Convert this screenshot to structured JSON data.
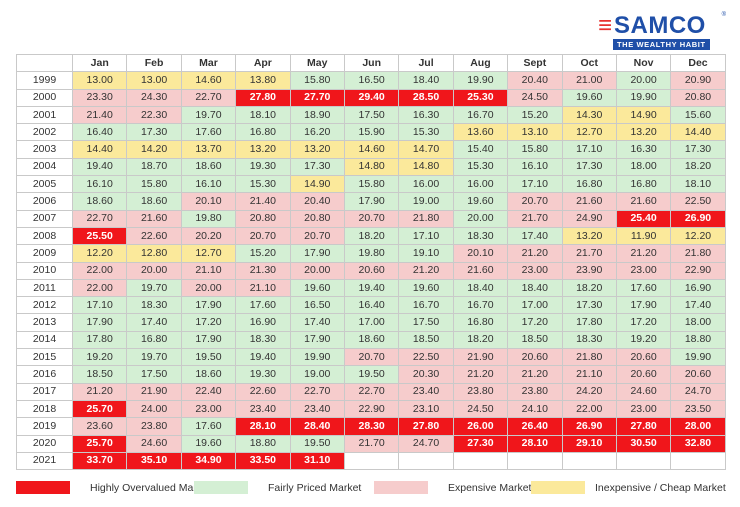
{
  "brand": {
    "name": "SAMCO",
    "tagline": "THE WEALTHY HABIT",
    "registered": "®"
  },
  "table": {
    "corner": "",
    "months": [
      "Jan",
      "Feb",
      "Mar",
      "Apr",
      "May",
      "Jun",
      "Jul",
      "Aug",
      "Sept",
      "Oct",
      "Nov",
      "Dec"
    ],
    "rows": [
      {
        "year": "1999",
        "values": [
          "13.00",
          "13.00",
          "14.60",
          "13.80",
          "15.80",
          "16.50",
          "18.40",
          "19.90",
          "20.40",
          "21.00",
          "20.00",
          "20.90"
        ],
        "classes": [
          "c",
          "c",
          "c",
          "c",
          "f",
          "f",
          "f",
          "f",
          "e",
          "e",
          "f",
          "e"
        ]
      },
      {
        "year": "2000",
        "values": [
          "23.30",
          "24.30",
          "22.70",
          "27.80",
          "27.70",
          "29.40",
          "28.50",
          "25.30",
          "24.50",
          "19.60",
          "19.90",
          "20.80"
        ],
        "classes": [
          "e",
          "e",
          "e",
          "h",
          "h",
          "h",
          "h",
          "h",
          "e",
          "f",
          "f",
          "e"
        ]
      },
      {
        "year": "2001",
        "values": [
          "21.40",
          "22.30",
          "19.70",
          "18.10",
          "18.90",
          "17.50",
          "16.30",
          "16.70",
          "15.20",
          "14.30",
          "14.90",
          "15.60"
        ],
        "classes": [
          "e",
          "e",
          "f",
          "f",
          "f",
          "f",
          "f",
          "f",
          "f",
          "c",
          "c",
          "f"
        ]
      },
      {
        "year": "2002",
        "values": [
          "16.40",
          "17.30",
          "17.60",
          "16.80",
          "16.20",
          "15.90",
          "15.30",
          "13.60",
          "13.10",
          "12.70",
          "13.20",
          "14.40"
        ],
        "classes": [
          "f",
          "f",
          "f",
          "f",
          "f",
          "f",
          "f",
          "c",
          "c",
          "c",
          "c",
          "c"
        ]
      },
      {
        "year": "2003",
        "values": [
          "14.40",
          "14.20",
          "13.70",
          "13.20",
          "13.20",
          "14.60",
          "14.70",
          "15.40",
          "15.80",
          "17.10",
          "16.30",
          "17.30"
        ],
        "classes": [
          "c",
          "c",
          "c",
          "c",
          "c",
          "c",
          "c",
          "f",
          "f",
          "f",
          "f",
          "f"
        ]
      },
      {
        "year": "2004",
        "values": [
          "19.40",
          "18.70",
          "18.60",
          "19.30",
          "17.30",
          "14.80",
          "14.80",
          "15.30",
          "16.10",
          "17.30",
          "18.00",
          "18.20"
        ],
        "classes": [
          "f",
          "f",
          "f",
          "f",
          "f",
          "c",
          "c",
          "f",
          "f",
          "f",
          "f",
          "f"
        ]
      },
      {
        "year": "2005",
        "values": [
          "16.10",
          "15.80",
          "16.10",
          "15.30",
          "14.90",
          "15.80",
          "16.00",
          "16.00",
          "17.10",
          "16.80",
          "16.80",
          "18.10"
        ],
        "classes": [
          "f",
          "f",
          "f",
          "f",
          "c",
          "f",
          "f",
          "f",
          "f",
          "f",
          "f",
          "f"
        ]
      },
      {
        "year": "2006",
        "values": [
          "18.60",
          "18.60",
          "20.10",
          "21.40",
          "20.40",
          "17.90",
          "19.00",
          "19.60",
          "20.70",
          "21.60",
          "21.60",
          "22.50"
        ],
        "classes": [
          "f",
          "f",
          "e",
          "e",
          "e",
          "f",
          "f",
          "f",
          "e",
          "e",
          "e",
          "e"
        ]
      },
      {
        "year": "2007",
        "values": [
          "22.70",
          "21.60",
          "19.80",
          "20.80",
          "20.80",
          "20.70",
          "21.80",
          "20.00",
          "21.70",
          "24.90",
          "25.40",
          "26.90"
        ],
        "classes": [
          "e",
          "e",
          "f",
          "e",
          "e",
          "e",
          "e",
          "f",
          "e",
          "e",
          "h",
          "h"
        ]
      },
      {
        "year": "2008",
        "values": [
          "25.50",
          "22.60",
          "20.20",
          "20.70",
          "20.70",
          "18.20",
          "17.10",
          "18.30",
          "17.40",
          "13.20",
          "11.90",
          "12.20"
        ],
        "classes": [
          "h",
          "e",
          "e",
          "e",
          "e",
          "f",
          "f",
          "f",
          "f",
          "c",
          "c",
          "c"
        ]
      },
      {
        "year": "2009",
        "values": [
          "12.20",
          "12.80",
          "12.70",
          "15.20",
          "17.90",
          "19.80",
          "19.10",
          "20.10",
          "21.20",
          "21.70",
          "21.20",
          "21.80"
        ],
        "classes": [
          "c",
          "c",
          "c",
          "f",
          "f",
          "f",
          "f",
          "e",
          "e",
          "e",
          "e",
          "e"
        ]
      },
      {
        "year": "2010",
        "values": [
          "22.00",
          "20.00",
          "21.10",
          "21.30",
          "20.00",
          "20.60",
          "21.20",
          "21.60",
          "23.00",
          "23.90",
          "23.00",
          "22.90"
        ],
        "classes": [
          "e",
          "e",
          "e",
          "e",
          "e",
          "e",
          "e",
          "e",
          "e",
          "e",
          "e",
          "e"
        ]
      },
      {
        "year": "2011",
        "values": [
          "22.00",
          "19.70",
          "20.00",
          "21.10",
          "19.60",
          "19.40",
          "19.60",
          "18.40",
          "18.40",
          "18.20",
          "17.60",
          "16.90"
        ],
        "classes": [
          "e",
          "f",
          "e",
          "e",
          "f",
          "f",
          "f",
          "f",
          "f",
          "f",
          "f",
          "f"
        ]
      },
      {
        "year": "2012",
        "values": [
          "17.10",
          "18.30",
          "17.90",
          "17.60",
          "16.50",
          "16.40",
          "16.70",
          "16.70",
          "17.00",
          "17.30",
          "17.90",
          "17.40"
        ],
        "classes": [
          "f",
          "f",
          "f",
          "f",
          "f",
          "f",
          "f",
          "f",
          "f",
          "f",
          "f",
          "f"
        ]
      },
      {
        "year": "2013",
        "values": [
          "17.90",
          "17.40",
          "17.20",
          "16.90",
          "17.40",
          "17.00",
          "17.50",
          "16.80",
          "17.20",
          "17.80",
          "17.20",
          "18.00"
        ],
        "classes": [
          "f",
          "f",
          "f",
          "f",
          "f",
          "f",
          "f",
          "f",
          "f",
          "f",
          "f",
          "f"
        ]
      },
      {
        "year": "2014",
        "values": [
          "17.80",
          "16.80",
          "17.90",
          "18.30",
          "17.90",
          "18.60",
          "18.50",
          "18.20",
          "18.50",
          "18.30",
          "19.20",
          "18.80"
        ],
        "classes": [
          "f",
          "f",
          "f",
          "f",
          "f",
          "f",
          "f",
          "f",
          "f",
          "f",
          "f",
          "f"
        ]
      },
      {
        "year": "2015",
        "values": [
          "19.20",
          "19.70",
          "19.50",
          "19.40",
          "19.90",
          "20.70",
          "22.50",
          "21.90",
          "20.60",
          "21.80",
          "20.60",
          "19.90"
        ],
        "classes": [
          "f",
          "f",
          "f",
          "f",
          "f",
          "e",
          "e",
          "e",
          "e",
          "e",
          "e",
          "f"
        ]
      },
      {
        "year": "2016",
        "values": [
          "18.50",
          "17.50",
          "18.60",
          "19.30",
          "19.00",
          "19.50",
          "20.30",
          "21.20",
          "21.20",
          "21.10",
          "20.60",
          "20.60"
        ],
        "classes": [
          "f",
          "f",
          "f",
          "f",
          "f",
          "f",
          "e",
          "e",
          "e",
          "e",
          "e",
          "e"
        ]
      },
      {
        "year": "2017",
        "values": [
          "21.20",
          "21.90",
          "22.40",
          "22.60",
          "22.70",
          "22.70",
          "23.40",
          "23.80",
          "23.80",
          "24.20",
          "24.60",
          "24.70"
        ],
        "classes": [
          "e",
          "e",
          "e",
          "e",
          "e",
          "e",
          "e",
          "e",
          "e",
          "e",
          "e",
          "e"
        ]
      },
      {
        "year": "2018",
        "values": [
          "25.70",
          "24.00",
          "23.00",
          "23.40",
          "23.40",
          "22.90",
          "23.10",
          "24.50",
          "24.10",
          "22.00",
          "23.00",
          "23.50"
        ],
        "classes": [
          "h",
          "e",
          "e",
          "e",
          "e",
          "e",
          "e",
          "e",
          "e",
          "e",
          "e",
          "e"
        ]
      },
      {
        "year": "2019",
        "values": [
          "23.60",
          "23.80",
          "17.60",
          "28.10",
          "28.40",
          "28.30",
          "27.80",
          "26.00",
          "26.40",
          "26.90",
          "27.80",
          "28.00"
        ],
        "classes": [
          "e",
          "e",
          "f",
          "h",
          "h",
          "h",
          "h",
          "h",
          "h",
          "h",
          "h",
          "h"
        ]
      },
      {
        "year": "2020",
        "values": [
          "25.70",
          "24.60",
          "19.60",
          "18.80",
          "19.50",
          "21.70",
          "24.70",
          "27.30",
          "28.10",
          "29.10",
          "30.50",
          "32.80"
        ],
        "classes": [
          "h",
          "e",
          "f",
          "f",
          "f",
          "e",
          "e",
          "h",
          "h",
          "h",
          "h",
          "h"
        ]
      },
      {
        "year": "2021",
        "values": [
          "33.70",
          "35.10",
          "34.90",
          "33.50",
          "31.10",
          "",
          "",
          "",
          "",
          "",
          "",
          ""
        ],
        "classes": [
          "h",
          "h",
          "h",
          "h",
          "h",
          "n",
          "n",
          "n",
          "n",
          "n",
          "n",
          "n"
        ]
      }
    ]
  },
  "legend": [
    {
      "label": "Highly Overvalued Market",
      "color": "#f0161b"
    },
    {
      "label": "Fairly Priced Market",
      "color": "#d4efd4"
    },
    {
      "label": "Expensive Market",
      "color": "#f6cccc"
    },
    {
      "label": "Inexpensive / Cheap Market",
      "color": "#fbe99b"
    }
  ]
}
